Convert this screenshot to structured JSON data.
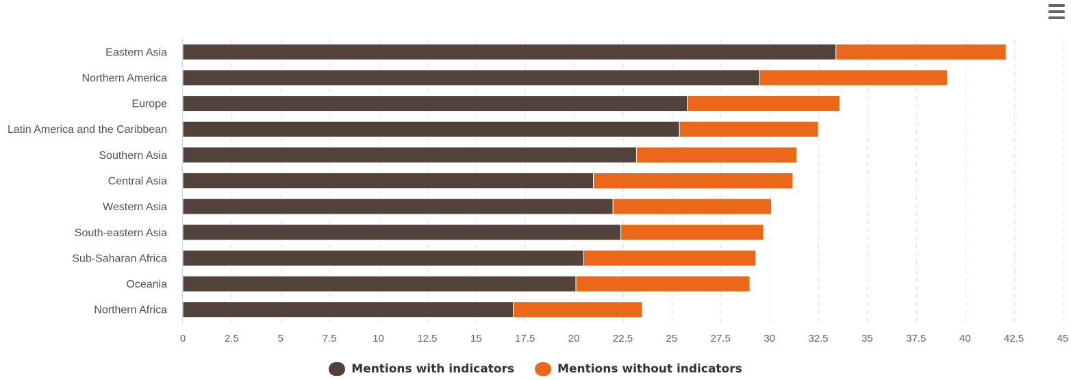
{
  "menu": {
    "icon": "hamburger-menu-icon"
  },
  "colors": {
    "with_indicators": "#53423A",
    "without_indicators": "#EB6719"
  },
  "chart_data": {
    "type": "bar",
    "orientation": "horizontal",
    "stacked": true,
    "categories": [
      "Eastern Asia",
      "Northern America",
      "Europe",
      "Latin America and the Caribbean",
      "Southern Asia",
      "Central Asia",
      "Western Asia",
      "South-eastern Asia",
      "Sub-Saharan Africa",
      "Oceania",
      "Northern Africa"
    ],
    "series": [
      {
        "name": "Mentions with indicators",
        "color": "#53423A",
        "values": [
          33.4,
          29.5,
          25.8,
          25.4,
          23.2,
          21.0,
          22.0,
          22.4,
          20.5,
          20.1,
          16.9
        ]
      },
      {
        "name": "Mentions without indicators",
        "color": "#EB6719",
        "values": [
          8.7,
          9.6,
          7.8,
          7.1,
          8.2,
          10.2,
          8.1,
          7.3,
          8.8,
          8.9,
          6.6
        ]
      }
    ],
    "xlim": [
      0,
      45
    ],
    "xticks": [
      0,
      2.5,
      5,
      7.5,
      10,
      12.5,
      15,
      17.5,
      20,
      22.5,
      25,
      27.5,
      30,
      32.5,
      35,
      37.5,
      40,
      42.5,
      45
    ],
    "xtick_labels": [
      "0",
      "2.5",
      "5",
      "7.5",
      "10",
      "12.5",
      "15",
      "17.5",
      "20",
      "22.5",
      "25",
      "27.5",
      "30",
      "32.5",
      "35",
      "37.5",
      "40",
      "42.5",
      "45"
    ],
    "title": "",
    "xlabel": "",
    "ylabel": "",
    "grid": true,
    "legend_position": "bottom-center"
  }
}
